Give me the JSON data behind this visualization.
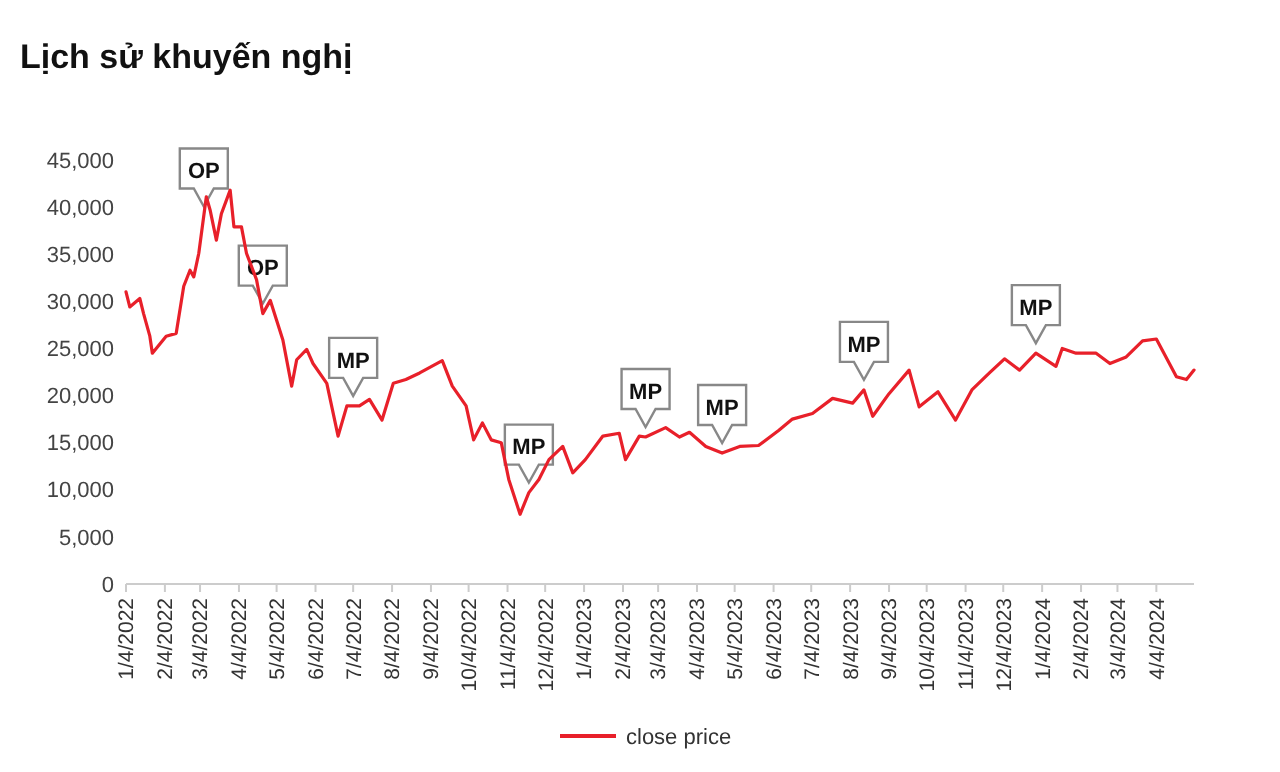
{
  "chart_data": {
    "type": "line",
    "title": "Lịch sử khuyến nghị",
    "x": [
      "2022-01-04",
      "2022-01-07",
      "2022-01-15",
      "2022-01-18",
      "2022-01-23",
      "2022-01-25",
      "2022-02-05",
      "2022-02-13",
      "2022-02-19",
      "2022-02-24",
      "2022-02-27",
      "2022-03-03",
      "2022-03-09",
      "2022-03-12",
      "2022-03-17",
      "2022-03-21",
      "2022-03-28",
      "2022-03-31",
      "2022-04-06",
      "2022-04-10",
      "2022-04-18",
      "2022-04-23",
      "2022-04-29",
      "2022-05-04",
      "2022-05-09",
      "2022-05-16",
      "2022-05-20",
      "2022-05-28",
      "2022-06-02",
      "2022-06-13",
      "2022-06-22",
      "2022-06-29",
      "2022-07-09",
      "2022-07-17",
      "2022-07-27",
      "2022-08-05",
      "2022-08-15",
      "2022-08-26",
      "2022-09-13",
      "2022-09-21",
      "2022-10-02",
      "2022-10-08",
      "2022-10-15",
      "2022-10-22",
      "2022-10-30",
      "2022-11-05",
      "2022-11-14",
      "2022-11-21",
      "2022-11-29",
      "2022-12-07",
      "2022-12-18",
      "2022-12-26",
      "2023-01-05",
      "2023-01-19",
      "2023-02-01",
      "2023-02-06",
      "2023-02-17",
      "2023-02-22",
      "2023-03-10",
      "2023-03-21",
      "2023-03-29",
      "2023-04-11",
      "2023-04-24",
      "2023-05-08",
      "2023-05-23",
      "2023-06-08",
      "2023-06-19",
      "2023-07-05",
      "2023-07-21",
      "2023-08-06",
      "2023-08-15",
      "2023-08-22",
      "2023-09-04",
      "2023-09-20",
      "2023-09-28",
      "2023-10-13",
      "2023-10-27",
      "2023-11-09",
      "2023-11-23",
      "2023-12-05",
      "2023-12-17",
      "2023-12-30",
      "2024-01-15",
      "2024-01-20",
      "2024-01-31",
      "2024-02-16",
      "2024-02-27",
      "2024-03-11",
      "2024-03-24",
      "2024-04-04",
      "2024-04-20",
      "2024-04-28",
      "2024-05-04"
    ],
    "series": [
      {
        "name": "close price",
        "color": "#e8202a",
        "values": [
          31000,
          29400,
          30300,
          28700,
          26300,
          24500,
          26300,
          26600,
          31600,
          33300,
          32600,
          35100,
          41100,
          39700,
          36500,
          39300,
          41800,
          37900,
          37900,
          35100,
          32300,
          28700,
          30100,
          28000,
          25900,
          21000,
          23800,
          24900,
          23400,
          21300,
          15700,
          18900,
          18900,
          19600,
          17400,
          21300,
          21700,
          22400,
          23700,
          21000,
          18900,
          15300,
          17100,
          15300,
          15000,
          11100,
          7400,
          9700,
          11100,
          13200,
          14600,
          11800,
          13200,
          15700,
          16000,
          13200,
          15700,
          15600,
          16600,
          15600,
          16100,
          14600,
          13900,
          14600,
          14700,
          16300,
          17500,
          18100,
          19700,
          19200,
          20600,
          17800,
          20200,
          22700,
          18800,
          20400,
          17400,
          20600,
          22400,
          23900,
          22700,
          24500,
          23100,
          25000,
          24500,
          24500,
          23400,
          24100,
          25800,
          26000,
          22000,
          21700,
          22700
        ]
      }
    ],
    "xlim": [
      "2022-01-04",
      "2024-05-04"
    ],
    "xticks": [
      {
        "value": "2022-01-04",
        "label": "1/4/2022"
      },
      {
        "value": "2022-02-04",
        "label": "2/4/2022"
      },
      {
        "value": "2022-03-04",
        "label": "3/4/2022"
      },
      {
        "value": "2022-04-04",
        "label": "4/4/2022"
      },
      {
        "value": "2022-05-04",
        "label": "5/4/2022"
      },
      {
        "value": "2022-06-04",
        "label": "6/4/2022"
      },
      {
        "value": "2022-07-04",
        "label": "7/4/2022"
      },
      {
        "value": "2022-08-04",
        "label": "8/4/2022"
      },
      {
        "value": "2022-09-04",
        "label": "9/4/2022"
      },
      {
        "value": "2022-10-04",
        "label": "10/4/2022"
      },
      {
        "value": "2022-11-04",
        "label": "11/4/2022"
      },
      {
        "value": "2022-12-04",
        "label": "12/4/2022"
      },
      {
        "value": "2023-01-04",
        "label": "1/4/2023"
      },
      {
        "value": "2023-02-04",
        "label": "2/4/2023"
      },
      {
        "value": "2023-03-04",
        "label": "3/4/2023"
      },
      {
        "value": "2023-04-04",
        "label": "4/4/2023"
      },
      {
        "value": "2023-05-04",
        "label": "5/4/2023"
      },
      {
        "value": "2023-06-04",
        "label": "6/4/2023"
      },
      {
        "value": "2023-07-04",
        "label": "7/4/2023"
      },
      {
        "value": "2023-08-04",
        "label": "8/4/2023"
      },
      {
        "value": "2023-09-04",
        "label": "9/4/2023"
      },
      {
        "value": "2023-10-04",
        "label": "10/4/2023"
      },
      {
        "value": "2023-11-04",
        "label": "11/4/2023"
      },
      {
        "value": "2023-12-04",
        "label": "12/4/2023"
      },
      {
        "value": "2024-01-04",
        "label": "1/4/2024"
      },
      {
        "value": "2024-02-04",
        "label": "2/4/2024"
      },
      {
        "value": "2024-03-04",
        "label": "3/4/2024"
      },
      {
        "value": "2024-04-04",
        "label": "4/4/2024"
      }
    ],
    "ylim": [
      0,
      45000
    ],
    "yticks": [
      0,
      {
        "value": 5000,
        "label": "5,000"
      },
      {
        "value": 10000,
        "label": "10,000"
      },
      {
        "value": 15000,
        "label": "15,000"
      },
      {
        "value": 20000,
        "label": "20,000"
      },
      {
        "value": 25000,
        "label": "25,000"
      },
      {
        "value": 30000,
        "label": "30,000"
      },
      {
        "value": 35000,
        "label": "35,000"
      },
      {
        "value": 40000,
        "label": "40,000"
      },
      {
        "value": 45000,
        "label": "45,000"
      }
    ],
    "annotations": [
      {
        "text": "OP",
        "x": "2022-03-07",
        "y": 39000
      },
      {
        "text": "OP",
        "x": "2022-04-23",
        "y": 28700
      },
      {
        "text": "MP",
        "x": "2022-07-04",
        "y": 18900
      },
      {
        "text": "MP",
        "x": "2022-11-21",
        "y": 9700
      },
      {
        "text": "MP",
        "x": "2023-02-22",
        "y": 15600
      },
      {
        "text": "MP",
        "x": "2023-04-24",
        "y": 13900
      },
      {
        "text": "MP",
        "x": "2023-08-15",
        "y": 20600
      },
      {
        "text": "MP",
        "x": "2023-12-30",
        "y": 24500
      }
    ],
    "grid": false,
    "legend": "bottom",
    "marker": "none",
    "line_style": "solid"
  }
}
